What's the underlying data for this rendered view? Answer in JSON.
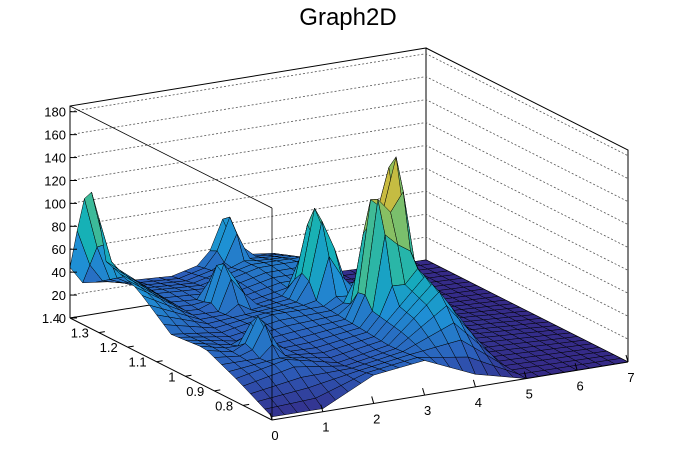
{
  "chart_data": {
    "type": "surface",
    "title": "Graph2D",
    "xlabel": "",
    "ylabel": "",
    "zlabel": "",
    "xlim": [
      0,
      7
    ],
    "ylim": [
      0.7,
      1.4
    ],
    "zlim": [
      0,
      185
    ],
    "x_ticks": [
      "0",
      "1",
      "2",
      "3",
      "4",
      "5",
      "6",
      "7"
    ],
    "y_ticks": [
      "0.8",
      "0.9",
      "1",
      "1.1",
      "1.2",
      "1.3",
      "1.4"
    ],
    "z_ticks": [
      "0",
      "20",
      "40",
      "60",
      "80",
      "100",
      "120",
      "140",
      "160",
      "180"
    ],
    "grid": true,
    "colormap": [
      "#352a87",
      "#2c5fbb",
      "#1f8fd4",
      "#14b0b8",
      "#4fbf8a",
      "#a8bf4c",
      "#e4b838",
      "#f9fb0e"
    ],
    "peaks": [
      {
        "x": 0.0,
        "y": 1.33,
        "z": 120
      },
      {
        "x": 1.0,
        "y": 0.92,
        "z": 55
      },
      {
        "x": 1.8,
        "y": 1.18,
        "z": 65
      },
      {
        "x": 3.0,
        "y": 1.38,
        "z": 70
      },
      {
        "x": 3.3,
        "y": 1.12,
        "z": 110
      },
      {
        "x": 3.6,
        "y": 0.96,
        "z": 150
      },
      {
        "x": 3.95,
        "y": 0.98,
        "z": 170
      }
    ],
    "surface_z_at_x": [
      {
        "x": 0.0,
        "z_rows": [
          5,
          35,
          60,
          55,
          100,
          120,
          55
        ]
      },
      {
        "x": 1.0,
        "z_rows": [
          5,
          55,
          40,
          45,
          50,
          55,
          45
        ]
      },
      {
        "x": 2.0,
        "z_rows": [
          45,
          35,
          45,
          60,
          45,
          50,
          40
        ]
      },
      {
        "x": 3.0,
        "z_rows": [
          55,
          50,
          55,
          60,
          60,
          70,
          60
        ]
      },
      {
        "x": 4.0,
        "z_rows": [
          20,
          120,
          150,
          80,
          60,
          70,
          50
        ]
      },
      {
        "x": 5.0,
        "z_rows": [
          0,
          5,
          10,
          10,
          5,
          5,
          5
        ]
      },
      {
        "x": 7.0,
        "z_rows": [
          0,
          0,
          0,
          0,
          0,
          0,
          0
        ]
      }
    ]
  }
}
